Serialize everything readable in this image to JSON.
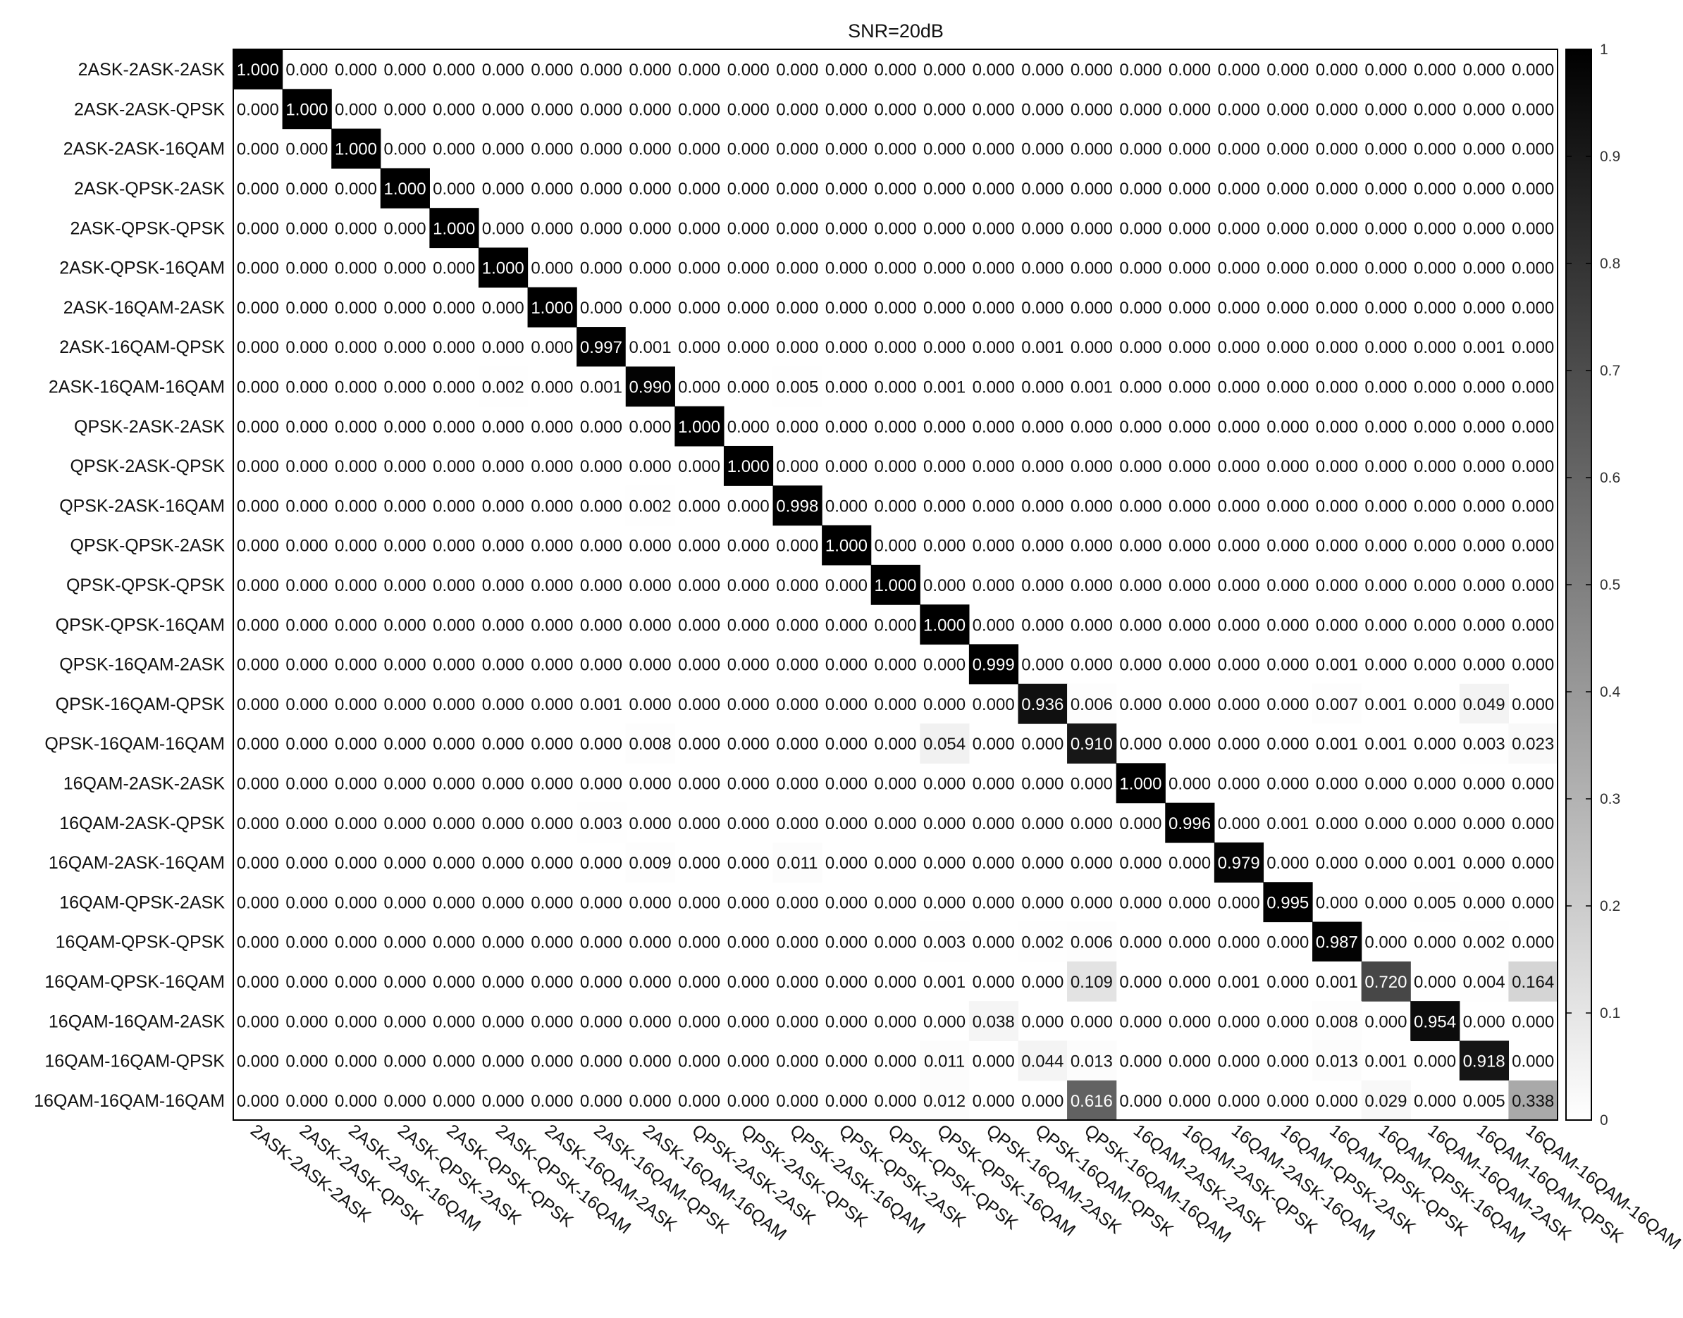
{
  "chart_data": {
    "type": "heatmap",
    "title": "SNR=20dB",
    "labels": [
      "2ASK-2ASK-2ASK",
      "2ASK-2ASK-QPSK",
      "2ASK-2ASK-16QAM",
      "2ASK-QPSK-2ASK",
      "2ASK-QPSK-QPSK",
      "2ASK-QPSK-16QAM",
      "2ASK-16QAM-2ASK",
      "2ASK-16QAM-QPSK",
      "2ASK-16QAM-16QAM",
      "QPSK-2ASK-2ASK",
      "QPSK-2ASK-QPSK",
      "QPSK-2ASK-16QAM",
      "QPSK-QPSK-2ASK",
      "QPSK-QPSK-QPSK",
      "QPSK-QPSK-16QAM",
      "QPSK-16QAM-2ASK",
      "QPSK-16QAM-QPSK",
      "QPSK-16QAM-16QAM",
      "16QAM-2ASK-2ASK",
      "16QAM-2ASK-QPSK",
      "16QAM-2ASK-16QAM",
      "16QAM-QPSK-2ASK",
      "16QAM-QPSK-QPSK",
      "16QAM-QPSK-16QAM",
      "16QAM-16QAM-2ASK",
      "16QAM-16QAM-QPSK",
      "16QAM-16QAM-16QAM"
    ],
    "values": [
      [
        1,
        0,
        0,
        0,
        0,
        0,
        0,
        0,
        0,
        0,
        0,
        0,
        0,
        0,
        0,
        0,
        0,
        0,
        0,
        0,
        0,
        0,
        0,
        0,
        0,
        0,
        0
      ],
      [
        0,
        1,
        0,
        0,
        0,
        0,
        0,
        0,
        0,
        0,
        0,
        0,
        0,
        0,
        0,
        0,
        0,
        0,
        0,
        0,
        0,
        0,
        0,
        0,
        0,
        0,
        0
      ],
      [
        0,
        0,
        1,
        0,
        0,
        0,
        0,
        0,
        0,
        0,
        0,
        0,
        0,
        0,
        0,
        0,
        0,
        0,
        0,
        0,
        0,
        0,
        0,
        0,
        0,
        0,
        0
      ],
      [
        0,
        0,
        0,
        1,
        0,
        0,
        0,
        0,
        0,
        0,
        0,
        0,
        0,
        0,
        0,
        0,
        0,
        0,
        0,
        0,
        0,
        0,
        0,
        0,
        0,
        0,
        0
      ],
      [
        0,
        0,
        0,
        0,
        1,
        0,
        0,
        0,
        0,
        0,
        0,
        0,
        0,
        0,
        0,
        0,
        0,
        0,
        0,
        0,
        0,
        0,
        0,
        0,
        0,
        0,
        0
      ],
      [
        0,
        0,
        0,
        0,
        0,
        1,
        0,
        0,
        0,
        0,
        0,
        0,
        0,
        0,
        0,
        0,
        0,
        0,
        0,
        0,
        0,
        0,
        0,
        0,
        0,
        0,
        0
      ],
      [
        0,
        0,
        0,
        0,
        0,
        0,
        1,
        0,
        0,
        0,
        0,
        0,
        0,
        0,
        0,
        0,
        0,
        0,
        0,
        0,
        0,
        0,
        0,
        0,
        0,
        0,
        0
      ],
      [
        0,
        0,
        0,
        0,
        0,
        0,
        0,
        0.997,
        0.001,
        0,
        0,
        0,
        0,
        0,
        0,
        0,
        0.001,
        0,
        0,
        0,
        0,
        0,
        0,
        0,
        0,
        0.001,
        0
      ],
      [
        0,
        0,
        0,
        0,
        0,
        0.002,
        0,
        0.001,
        0.99,
        0,
        0,
        0.005,
        0,
        0,
        0.001,
        0,
        0,
        0.001,
        0,
        0,
        0,
        0,
        0,
        0,
        0,
        0,
        0
      ],
      [
        0,
        0,
        0,
        0,
        0,
        0,
        0,
        0,
        0,
        1,
        0,
        0,
        0,
        0,
        0,
        0,
        0,
        0,
        0,
        0,
        0,
        0,
        0,
        0,
        0,
        0,
        0
      ],
      [
        0,
        0,
        0,
        0,
        0,
        0,
        0,
        0,
        0,
        0,
        1,
        0,
        0,
        0,
        0,
        0,
        0,
        0,
        0,
        0,
        0,
        0,
        0,
        0,
        0,
        0,
        0
      ],
      [
        0,
        0,
        0,
        0,
        0,
        0,
        0,
        0,
        0.002,
        0,
        0,
        0.998,
        0,
        0,
        0,
        0,
        0,
        0,
        0,
        0,
        0,
        0,
        0,
        0,
        0,
        0,
        0
      ],
      [
        0,
        0,
        0,
        0,
        0,
        0,
        0,
        0,
        0,
        0,
        0,
        0,
        1,
        0,
        0,
        0,
        0,
        0,
        0,
        0,
        0,
        0,
        0,
        0,
        0,
        0,
        0
      ],
      [
        0,
        0,
        0,
        0,
        0,
        0,
        0,
        0,
        0,
        0,
        0,
        0,
        0,
        1,
        0,
        0,
        0,
        0,
        0,
        0,
        0,
        0,
        0,
        0,
        0,
        0,
        0
      ],
      [
        0,
        0,
        0,
        0,
        0,
        0,
        0,
        0,
        0,
        0,
        0,
        0,
        0,
        0,
        1,
        0,
        0,
        0,
        0,
        0,
        0,
        0,
        0,
        0,
        0,
        0,
        0
      ],
      [
        0,
        0,
        0,
        0,
        0,
        0,
        0,
        0,
        0,
        0,
        0,
        0,
        0,
        0,
        0,
        0.999,
        0,
        0,
        0,
        0,
        0,
        0,
        0.001,
        0,
        0,
        0,
        0
      ],
      [
        0,
        0,
        0,
        0,
        0,
        0,
        0,
        0.001,
        0,
        0,
        0,
        0,
        0,
        0,
        0,
        0,
        0.936,
        0.006,
        0,
        0,
        0,
        0,
        0.007,
        0.001,
        0,
        0.049,
        0
      ],
      [
        0,
        0,
        0,
        0,
        0,
        0,
        0,
        0,
        0.008,
        0,
        0,
        0,
        0,
        0,
        0.054,
        0,
        0,
        0.91,
        0,
        0,
        0,
        0,
        0.001,
        0.001,
        0,
        0.003,
        0.023
      ],
      [
        0,
        0,
        0,
        0,
        0,
        0,
        0,
        0,
        0,
        0,
        0,
        0,
        0,
        0,
        0,
        0,
        0,
        0,
        1,
        0,
        0,
        0,
        0,
        0,
        0,
        0,
        0
      ],
      [
        0,
        0,
        0,
        0,
        0,
        0,
        0,
        0.003,
        0,
        0,
        0,
        0,
        0,
        0,
        0,
        0,
        0,
        0,
        0,
        0.996,
        0,
        0.001,
        0,
        0,
        0,
        0,
        0
      ],
      [
        0,
        0,
        0,
        0,
        0,
        0,
        0,
        0,
        0.009,
        0,
        0,
        0.011,
        0,
        0,
        0,
        0,
        0,
        0,
        0,
        0,
        0.979,
        0,
        0,
        0,
        0.001,
        0,
        0
      ],
      [
        0,
        0,
        0,
        0,
        0,
        0,
        0,
        0,
        0,
        0,
        0,
        0,
        0,
        0,
        0,
        0,
        0,
        0,
        0,
        0,
        0,
        0.995,
        0,
        0,
        0.005,
        0,
        0
      ],
      [
        0,
        0,
        0,
        0,
        0,
        0,
        0,
        0,
        0,
        0,
        0,
        0,
        0,
        0,
        0.003,
        0,
        0.002,
        0.006,
        0,
        0,
        0,
        0,
        0.987,
        0,
        0,
        0.002,
        0
      ],
      [
        0,
        0,
        0,
        0,
        0,
        0,
        0,
        0,
        0,
        0,
        0,
        0,
        0,
        0,
        0.001,
        0,
        0,
        0.109,
        0,
        0,
        0.001,
        0,
        0.001,
        0.72,
        0,
        0.004,
        0.164
      ],
      [
        0,
        0,
        0,
        0,
        0,
        0,
        0,
        0,
        0,
        0,
        0,
        0,
        0,
        0,
        0,
        0.038,
        0,
        0,
        0,
        0,
        0,
        0,
        0.008,
        0,
        0.954,
        0,
        0
      ],
      [
        0,
        0,
        0,
        0,
        0,
        0,
        0,
        0,
        0,
        0,
        0,
        0,
        0,
        0,
        0.011,
        0,
        0.044,
        0.013,
        0,
        0,
        0,
        0,
        0.013,
        0.001,
        0,
        0.918,
        0
      ],
      [
        0,
        0,
        0,
        0,
        0,
        0,
        0,
        0,
        0,
        0,
        0,
        0,
        0,
        0,
        0.012,
        0,
        0,
        0.616,
        0,
        0,
        0,
        0,
        0,
        0.029,
        0,
        0.005,
        0.338
      ]
    ],
    "value_format": "fixed-3-decimals",
    "colormap": "gray-reversed",
    "color_range": [
      0,
      1
    ],
    "colorbar_ticks": [
      "0",
      "0.1",
      "0.2",
      "0.3",
      "0.4",
      "0.5",
      "0.6",
      "0.7",
      "0.8",
      "0.9",
      "1"
    ],
    "colors": {
      "low": "#ffffff",
      "high": "#000000",
      "axis": "#000000"
    },
    "grid": false,
    "legend": "colorbar-right"
  }
}
